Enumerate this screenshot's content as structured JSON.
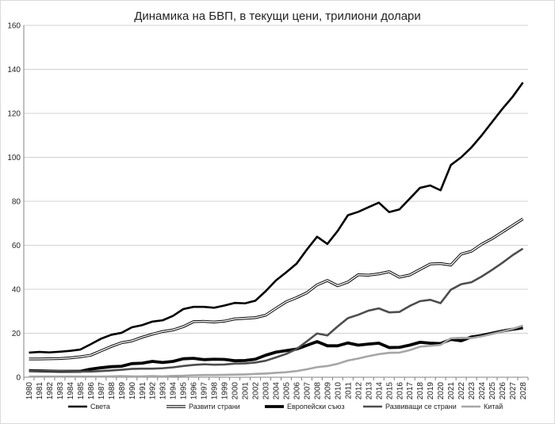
{
  "chart_data": {
    "type": "line",
    "title": "Динамика на БВП, в текущи цени, трилиони долари",
    "xlabel": "",
    "ylabel": "",
    "ylim": [
      0,
      160
    ],
    "yticks": [
      0,
      20,
      40,
      60,
      80,
      100,
      120,
      140,
      160
    ],
    "grid": true,
    "legend_position": "bottom",
    "x": [
      1980,
      1981,
      1982,
      1983,
      1984,
      1985,
      1986,
      1987,
      1988,
      1989,
      1990,
      1991,
      1992,
      1993,
      1994,
      1995,
      1996,
      1997,
      1998,
      1999,
      2000,
      2001,
      2002,
      2003,
      2004,
      2005,
      2006,
      2007,
      2008,
      2009,
      2010,
      2011,
      2012,
      2013,
      2014,
      2015,
      2016,
      2017,
      2018,
      2019,
      2020,
      2021,
      2022,
      2023,
      2024,
      2025,
      2026,
      2027,
      2028
    ],
    "series": [
      {
        "name": "Света",
        "color": "#000000",
        "style": "solid",
        "values": [
          11.2,
          11.5,
          11.3,
          11.6,
          12.0,
          12.6,
          15.0,
          17.5,
          19.3,
          20.2,
          22.7,
          23.7,
          25.3,
          25.9,
          27.9,
          31.0,
          32.0,
          32.0,
          31.6,
          32.6,
          33.8,
          33.6,
          34.8,
          39.1,
          44.0,
          47.7,
          51.6,
          58.0,
          63.9,
          60.6,
          66.5,
          73.7,
          75.2,
          77.3,
          79.4,
          75.1,
          76.3,
          81.2,
          86.1,
          87.2,
          85.0,
          96.5,
          100.0,
          104.5,
          110.0,
          116.0,
          122.0,
          127.5,
          134.0
        ]
      },
      {
        "name": "Развити страни",
        "color": "#000000",
        "style": "double",
        "values": [
          8.3,
          8.3,
          8.4,
          8.5,
          8.8,
          9.3,
          10.0,
          12.0,
          14.0,
          15.7,
          16.5,
          18.2,
          19.6,
          20.8,
          21.5,
          23.0,
          25.3,
          25.4,
          25.1,
          25.5,
          26.5,
          26.8,
          27.1,
          28.2,
          31.3,
          34.3,
          36.2,
          38.4,
          42.0,
          44.0,
          41.6,
          43.3,
          46.6,
          46.4,
          47.0,
          48.0,
          45.5,
          46.5,
          49.0,
          51.5,
          51.7,
          51.0,
          56.0,
          57.3,
          60.5,
          63.0,
          66.0,
          69.0,
          72.0
        ]
      },
      {
        "name": "Европейски съюз",
        "color": "#000000",
        "style": "bold",
        "values": [
          3.0,
          2.9,
          2.8,
          2.7,
          2.7,
          2.7,
          3.7,
          4.3,
          4.8,
          5.0,
          6.2,
          6.4,
          7.2,
          6.7,
          7.2,
          8.4,
          8.6,
          8.0,
          8.2,
          8.1,
          7.5,
          7.6,
          8.2,
          10.0,
          11.4,
          12.1,
          12.8,
          14.5,
          16.2,
          14.3,
          14.3,
          15.6,
          14.6,
          15.1,
          15.5,
          13.5,
          13.6,
          14.6,
          15.9,
          15.5,
          15.3,
          17.2,
          16.6,
          18.3,
          19.0,
          20.0,
          21.0,
          21.8,
          22.5
        ]
      },
      {
        "name": "Развиващи се страни",
        "color": "#4d4d4d",
        "style": "solid",
        "values": [
          2.9,
          2.9,
          2.8,
          2.8,
          2.7,
          2.6,
          2.6,
          2.8,
          3.1,
          3.4,
          3.8,
          3.9,
          3.9,
          4.1,
          4.5,
          5.1,
          5.6,
          5.9,
          5.7,
          5.8,
          6.2,
          6.3,
          6.7,
          7.5,
          9.0,
          10.6,
          12.8,
          16.3,
          19.9,
          19.0,
          23.1,
          26.9,
          28.4,
          30.3,
          31.3,
          29.5,
          29.7,
          32.4,
          34.6,
          35.2,
          33.7,
          39.8,
          42.3,
          43.2,
          45.8,
          48.8,
          52.0,
          55.5,
          58.5
        ]
      },
      {
        "name": "Китай",
        "color": "#a6a6a6",
        "style": "solid",
        "values": [
          0.3,
          0.3,
          0.3,
          0.3,
          0.3,
          0.3,
          0.3,
          0.3,
          0.4,
          0.5,
          0.4,
          0.4,
          0.5,
          0.4,
          0.6,
          0.7,
          0.9,
          1.0,
          1.0,
          1.1,
          1.2,
          1.3,
          1.5,
          1.7,
          2.0,
          2.3,
          2.8,
          3.6,
          4.6,
          5.1,
          6.1,
          7.6,
          8.5,
          9.6,
          10.5,
          11.1,
          11.2,
          12.3,
          13.9,
          14.3,
          14.7,
          17.7,
          17.9,
          17.8,
          18.6,
          19.7,
          20.8,
          22.0,
          23.5
        ]
      }
    ]
  }
}
